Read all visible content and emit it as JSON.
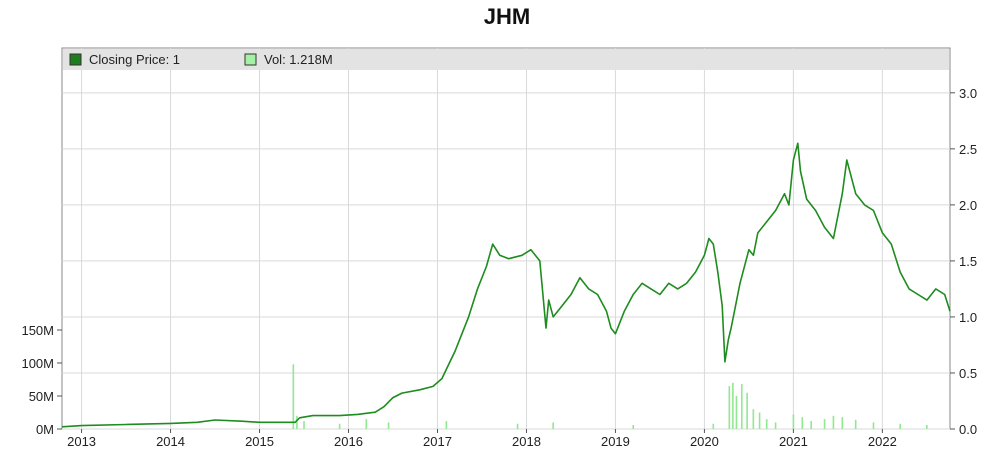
{
  "chart_data": {
    "type": "line",
    "title": "JHM",
    "legend": {
      "placement": "top-left",
      "items": [
        {
          "label": "Closing Price: 1",
          "color": "#1e7d1e"
        },
        {
          "label": "Vol: 1.218M",
          "color": "#a6f0a6"
        }
      ]
    },
    "grid": true,
    "x_axis": {
      "ticks": [
        "2013",
        "2014",
        "2015",
        "2016",
        "2017",
        "2018",
        "2019",
        "2020",
        "2021",
        "2022"
      ],
      "range": [
        2012.78,
        2022.76
      ]
    },
    "y_axis_right": {
      "label": "",
      "ticks": [
        "0.0",
        "0.5",
        "1.0",
        "1.5",
        "2.0",
        "2.5",
        "3.0"
      ],
      "range": [
        0.0,
        3.4
      ]
    },
    "y_axis_left": {
      "label": "",
      "ticks": [
        "0M",
        "50M",
        "100M",
        "150M"
      ],
      "range": [
        0,
        150
      ]
    },
    "series": [
      {
        "name": "Closing Price",
        "color": "#1e8c1e",
        "x": [
          2012.78,
          2013.0,
          2013.5,
          2014.0,
          2014.3,
          2014.5,
          2014.8,
          2015.0,
          2015.4,
          2015.45,
          2015.6,
          2015.9,
          2016.1,
          2016.3,
          2016.4,
          2016.5,
          2016.6,
          2016.8,
          2016.95,
          2017.05,
          2017.2,
          2017.35,
          2017.45,
          2017.55,
          2017.62,
          2017.7,
          2017.8,
          2017.95,
          2018.05,
          2018.15,
          2018.22,
          2018.25,
          2018.3,
          2018.4,
          2018.5,
          2018.6,
          2018.7,
          2018.8,
          2018.9,
          2018.95,
          2019.0,
          2019.1,
          2019.2,
          2019.3,
          2019.4,
          2019.5,
          2019.6,
          2019.7,
          2019.8,
          2019.9,
          2020.0,
          2020.05,
          2020.1,
          2020.15,
          2020.2,
          2020.23,
          2020.27,
          2020.3,
          2020.4,
          2020.5,
          2020.55,
          2020.6,
          2020.7,
          2020.8,
          2020.9,
          2020.95,
          2021.0,
          2021.05,
          2021.08,
          2021.15,
          2021.25,
          2021.35,
          2021.45,
          2021.55,
          2021.6,
          2021.7,
          2021.8,
          2021.9,
          2022.0,
          2022.1,
          2022.2,
          2022.3,
          2022.4,
          2022.5,
          2022.6,
          2022.7,
          2022.76
        ],
        "values": [
          0.02,
          0.03,
          0.04,
          0.05,
          0.06,
          0.08,
          0.07,
          0.06,
          0.06,
          0.1,
          0.12,
          0.12,
          0.13,
          0.15,
          0.2,
          0.28,
          0.32,
          0.35,
          0.38,
          0.45,
          0.7,
          1.0,
          1.25,
          1.45,
          1.65,
          1.55,
          1.52,
          1.55,
          1.6,
          1.5,
          0.9,
          1.15,
          1.0,
          1.1,
          1.2,
          1.35,
          1.25,
          1.2,
          1.05,
          0.9,
          0.85,
          1.05,
          1.2,
          1.3,
          1.25,
          1.2,
          1.3,
          1.25,
          1.3,
          1.4,
          1.55,
          1.7,
          1.65,
          1.4,
          1.1,
          0.6,
          0.8,
          0.9,
          1.3,
          1.6,
          1.55,
          1.75,
          1.85,
          1.95,
          2.1,
          2.0,
          2.4,
          2.55,
          2.3,
          2.05,
          1.95,
          1.8,
          1.7,
          2.1,
          2.4,
          2.1,
          2.0,
          1.95,
          1.75,
          1.65,
          1.4,
          1.25,
          1.2,
          1.15,
          1.25,
          1.2,
          1.05
        ]
      },
      {
        "name": "Volume",
        "color": "#90e890",
        "x": [
          2015.38,
          2015.42,
          2015.5,
          2015.9,
          2016.2,
          2016.45,
          2017.1,
          2017.9,
          2018.3,
          2019.2,
          2020.1,
          2020.28,
          2020.32,
          2020.36,
          2020.42,
          2020.48,
          2020.55,
          2020.62,
          2020.7,
          2020.8,
          2021.0,
          2021.1,
          2021.2,
          2021.35,
          2021.45,
          2021.55,
          2021.7,
          2021.9,
          2022.2,
          2022.5
        ],
        "values": [
          98,
          20,
          12,
          8,
          15,
          10,
          12,
          8,
          10,
          6,
          8,
          65,
          70,
          50,
          68,
          55,
          30,
          25,
          15,
          10,
          22,
          18,
          12,
          15,
          20,
          18,
          14,
          10,
          8,
          6
        ]
      }
    ]
  }
}
